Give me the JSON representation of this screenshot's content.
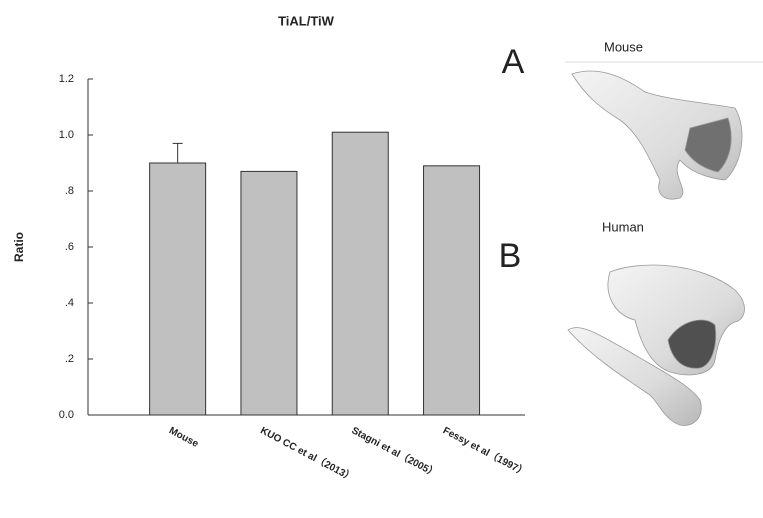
{
  "chart_data": {
    "type": "bar",
    "title": "TiAL/TiW",
    "y_label": "Ratio",
    "categories": [
      "Mouse",
      "KUO CC et al（2013）",
      "Stagni et al（2005）",
      "Fessy et al（1997）"
    ],
    "values": [
      0.9,
      0.87,
      1.01,
      0.89
    ],
    "errors": [
      0.07,
      null,
      null,
      null
    ],
    "color": "#c0c0c0",
    "ylim": [
      0,
      1.2
    ],
    "yticks": [
      {
        "value": 0,
        "label": "0.0"
      },
      {
        "value": 0.2,
        "label": ".2"
      },
      {
        "value": 0.4,
        "label": ".4"
      },
      {
        "value": 0.6,
        "label": ".6"
      },
      {
        "value": 0.8,
        "label": ".8"
      },
      {
        "value": 1.0,
        "label": "1.0"
      },
      1.2
    ],
    "grid": false
  },
  "panels": {
    "a_label": "A",
    "b_label": "B",
    "mouse_label": "Mouse",
    "human_label": "Human"
  }
}
